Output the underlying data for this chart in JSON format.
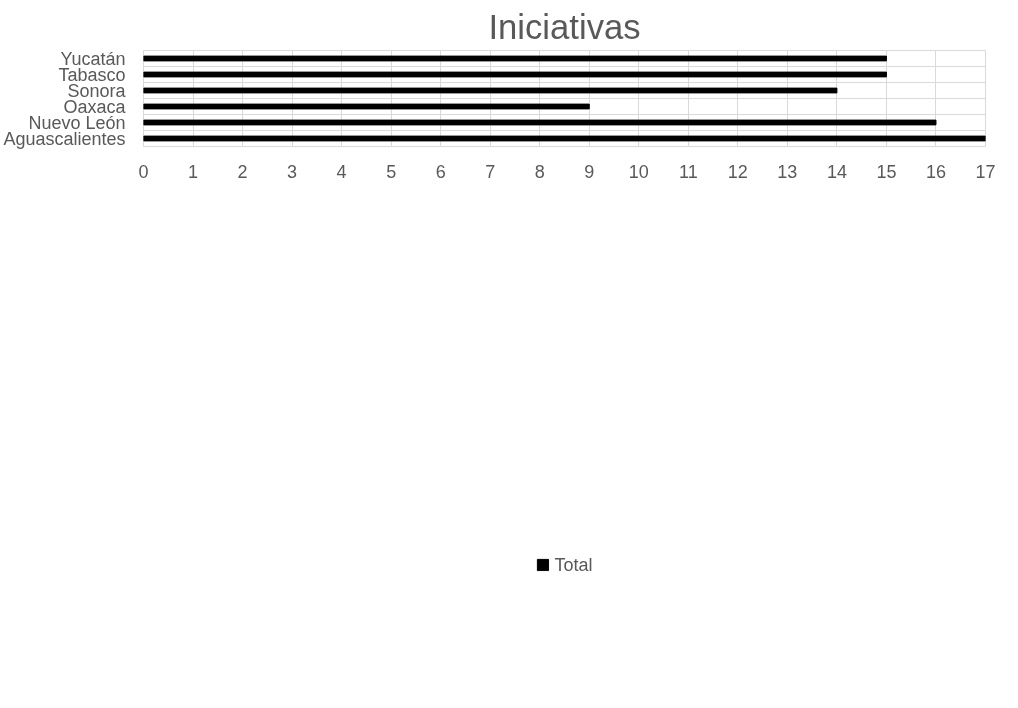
{
  "chart_data": {
    "type": "bar",
    "orientation": "horizontal",
    "title": "Iniciativas",
    "categories": [
      "Yucatán",
      "Tabasco",
      "Sonora",
      "Oaxaca",
      "Nuevo León",
      "Aguascalientes"
    ],
    "series": [
      {
        "name": "Total",
        "color": "#000000",
        "values": [
          15,
          15,
          14,
          9,
          16,
          17
        ]
      }
    ],
    "xlim": [
      0,
      17
    ],
    "xticks": [
      0,
      1,
      2,
      3,
      4,
      5,
      6,
      7,
      8,
      9,
      10,
      11,
      12,
      13,
      14,
      15,
      16,
      17
    ],
    "grid": true,
    "legend": "bottom"
  }
}
